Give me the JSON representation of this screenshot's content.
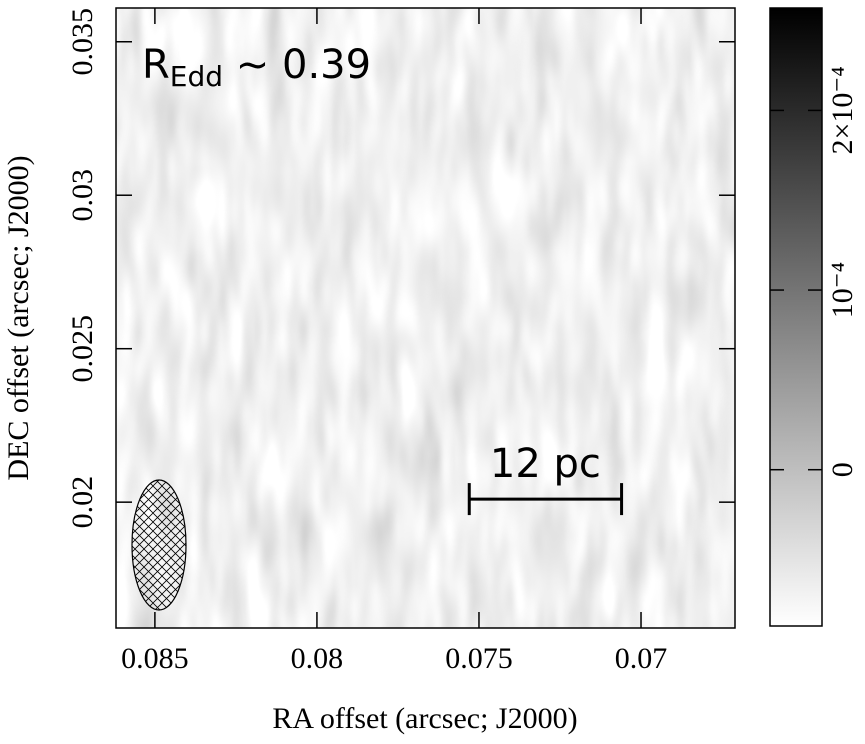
{
  "chart_data": {
    "type": "image",
    "x_label": "RA offset (arcsec; J2000)",
    "y_label": "DEC offset (arcsec; J2000)",
    "xlim": [
      0.0862,
      0.0671
    ],
    "xticks": [
      0.085,
      0.08,
      0.075,
      0.07
    ],
    "ylim": [
      0.0159,
      0.0361
    ],
    "yticks": [
      0.02,
      0.025,
      0.03,
      0.035
    ],
    "colorbar": {
      "clim": [
        -8.7e-05,
        0.000257
      ],
      "ticks": [
        0,
        {
          "value": 0.0001,
          "label": "10⁻⁴"
        },
        {
          "value": 0.0002,
          "label": "2×10⁻⁴"
        }
      ],
      "colors": [
        "#ffffff",
        "#000000"
      ]
    },
    "annotation": {
      "text": "R",
      "subscript": "Edd",
      "suffix": " ~ 0.39"
    },
    "scale_bar": {
      "label": "12 pc",
      "x": [
        0.0753,
        0.0706
      ],
      "y": 0.0201
    }
  }
}
